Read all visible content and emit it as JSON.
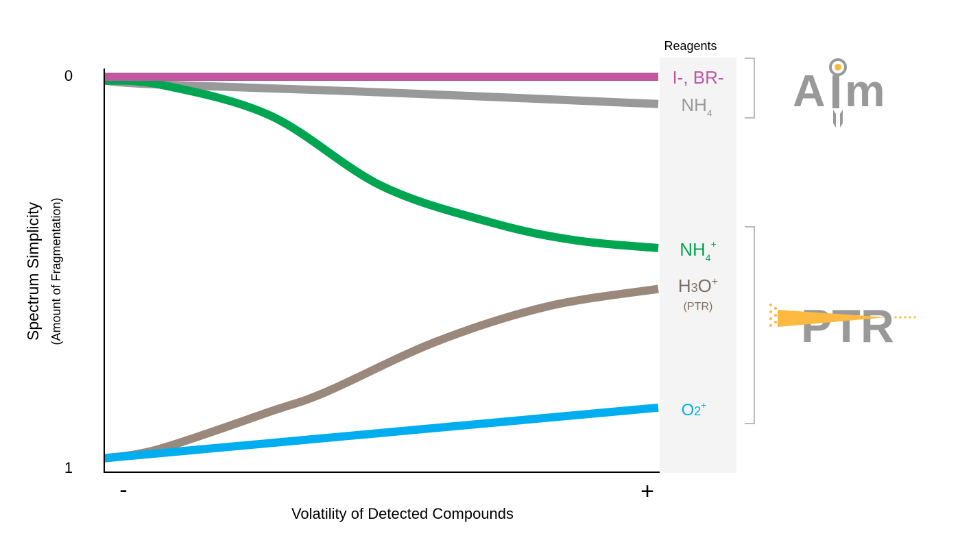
{
  "chart_data": {
    "type": "line",
    "ylabel": "Spectrum Simplicity",
    "ylabel_sub": "(Amount of Fragmentation)",
    "xlabel": "Volatility of Detected Compounds",
    "x_tick_labels": {
      "low": "-",
      "high": "+"
    },
    "y_tick_labels": {
      "top": "0",
      "bottom": "1"
    },
    "ylim": [
      1,
      0
    ],
    "xlim": [
      0,
      1
    ],
    "grid": false,
    "legend_title": "Reagents",
    "series": [
      {
        "name": "I-, BR-",
        "color": "#c1579f",
        "x": [
          0,
          1
        ],
        "y": [
          0,
          0
        ]
      },
      {
        "name": "NH4",
        "color": "#999999",
        "x": [
          0,
          0.1,
          0.5,
          1
        ],
        "y": [
          0.01,
          0.02,
          0.04,
          0.07
        ]
      },
      {
        "name": "NH4+",
        "color": "#00a551",
        "x": [
          0,
          0.1,
          0.3,
          0.5,
          0.7,
          0.85,
          1
        ],
        "y": [
          0.01,
          0.02,
          0.1,
          0.28,
          0.375,
          0.42,
          0.44
        ]
      },
      {
        "name": "H3O+",
        "sub": "(PTR)",
        "color": "#9b887c",
        "x": [
          0,
          0.1,
          0.3,
          0.4,
          0.6,
          0.8,
          1
        ],
        "y": [
          0.98,
          0.956,
          0.86,
          0.81,
          0.68,
          0.59,
          0.545
        ]
      },
      {
        "name": "O2+",
        "color": "#00aeef",
        "x": [
          0,
          1
        ],
        "y": [
          0.98,
          0.85
        ]
      }
    ],
    "groups": [
      {
        "logo": "Aim",
        "members": [
          "I-, BR-",
          "NH4"
        ]
      },
      {
        "logo": "PTR",
        "members": [
          "NH4+",
          "H3O+",
          "O2+"
        ]
      }
    ]
  },
  "colors": {
    "logo_gray": "#999999",
    "logo_accent": "#fdb940",
    "panel": "#f4f4f4"
  }
}
